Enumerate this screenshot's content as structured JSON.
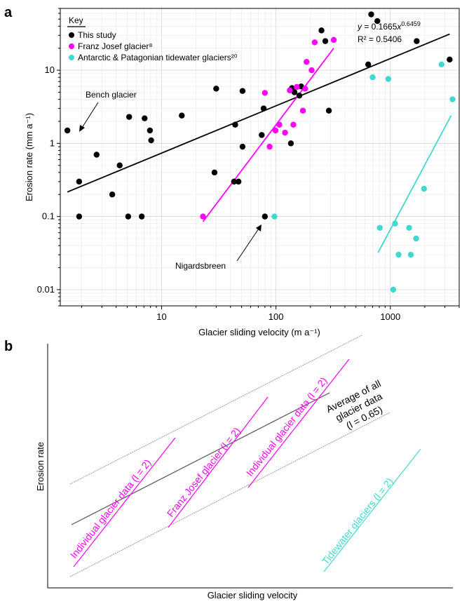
{
  "panel_a": {
    "label": "a",
    "xlabel": "Glacier sliding velocity (m a⁻¹)",
    "ylabel": "Erosion rate (mm a⁻¹)",
    "legend_title": "Key",
    "equation": "y = 0.1665x^0.6459",
    "r2": "R² = 0.5406",
    "annotations": [
      "Bench glacier",
      "Nigardsbreen"
    ]
  },
  "panel_b": {
    "label": "b",
    "xlabel": "Glacier sliding velocity",
    "ylabel": "Erosion rate",
    "labels": {
      "individual_1": "Individual glacier data (l = 2)",
      "franz": "Franz Josef glacier (l = 2)",
      "individual_2": "Individual glacier data (l = 2)",
      "avg_1": "Average of all",
      "avg_2": "glacier data",
      "avg_3": "(l = 0.65)",
      "tidewater": "Tidewater glaciers (l = 2)"
    }
  },
  "colors": {
    "this_study": "#000000",
    "franz": "#ff00ff",
    "tidewater": "#40d8d0",
    "grey": "#9a9a9a"
  },
  "chart_data": [
    {
      "type": "scatter",
      "xscale": "log",
      "yscale": "log",
      "xlim": [
        1.3,
        4000
      ],
      "ylim": [
        0.006,
        70
      ],
      "xticks": [
        10,
        100,
        1000
      ],
      "yticks": [
        0.01,
        0.1,
        1,
        10
      ],
      "xlabel": "Glacier sliding velocity (m a⁻¹)",
      "ylabel": "Erosion rate (mm a⁻¹)",
      "grid": true,
      "legend_position": "top-left",
      "series": [
        {
          "name": "This study",
          "color": "#000000",
          "points": [
            [
              1.5,
              1.5
            ],
            [
              1.9,
              0.3
            ],
            [
              1.9,
              0.1
            ],
            [
              2.7,
              0.7
            ],
            [
              3.7,
              0.2
            ],
            [
              4.3,
              0.5
            ],
            [
              5.1,
              0.1
            ],
            [
              5.2,
              2.3
            ],
            [
              6.7,
              0.1
            ],
            [
              7.1,
              2.2
            ],
            [
              7.9,
              1.5
            ],
            [
              8.1,
              1.1
            ],
            [
              15,
              2.4
            ],
            [
              29,
              0.4
            ],
            [
              30,
              5.6
            ],
            [
              43,
              0.3
            ],
            [
              44,
              1.8
            ],
            [
              47,
              0.3
            ],
            [
              51,
              0.9
            ],
            [
              51,
              5.2
            ],
            [
              75,
              1.3
            ],
            [
              78,
              3.0
            ],
            [
              80,
              0.1
            ],
            [
              135,
              1.0
            ],
            [
              138,
              5.7
            ],
            [
              145,
              5.0
            ],
            [
              160,
              4.5
            ],
            [
              166,
              6.0
            ],
            [
              250,
              35
            ],
            [
              270,
              25
            ],
            [
              290,
              2.8
            ],
            [
              640,
              12
            ],
            [
              680,
              58
            ],
            [
              770,
              47
            ],
            [
              1700,
              25
            ],
            [
              3300,
              14
            ]
          ],
          "fit": {
            "label": "y = 0.1665x^0.6459",
            "a": 0.1665,
            "b": 0.6459,
            "x_range": [
              1.5,
              3300
            ],
            "r2": "0.5406"
          }
        },
        {
          "name": "Franz Josef glacier⁸",
          "color": "#ff00ff",
          "points": [
            [
              23,
              0.1
            ],
            [
              80,
              4.9
            ],
            [
              88,
              0.9
            ],
            [
              99,
              1.5
            ],
            [
              107,
              1.8
            ],
            [
              120,
              1.4
            ],
            [
              132,
              5.3
            ],
            [
              142,
              1.8
            ],
            [
              152,
              5.9
            ],
            [
              172,
              2.8
            ],
            [
              180,
              5.6
            ],
            [
              185,
              13
            ],
            [
              205,
              10
            ],
            [
              218,
              24
            ],
            [
              320,
              26
            ]
          ],
          "fit": {
            "x_range": [
              23,
              320
            ],
            "y_range": [
              0.085,
              20
            ]
          }
        },
        {
          "name": "Antarctic & Patagonian tidewater glaciers²⁰",
          "color": "#40d8d0",
          "points": [
            [
              97,
              0.1
            ],
            [
              700,
              8.0
            ],
            [
              960,
              7.6
            ],
            [
              810,
              0.07
            ],
            [
              1060,
              0.01
            ],
            [
              1100,
              0.08
            ],
            [
              1180,
              0.03
            ],
            [
              1460,
              0.07
            ],
            [
              1510,
              0.03
            ],
            [
              1680,
              0.05
            ],
            [
              1970,
              0.24
            ],
            [
              2800,
              12
            ],
            [
              3500,
              4.0
            ]
          ],
          "fit": {
            "x_range": [
              780,
              3400
            ],
            "y_range": [
              0.032,
              2.4
            ]
          }
        }
      ]
    },
    {
      "type": "line",
      "xlabel": "Glacier sliding velocity",
      "ylabel": "Erosion rate",
      "series": [
        {
          "name": "Average of all glacier data (l = 0.65)",
          "slope": 0.65
        },
        {
          "name": "Individual glacier data (l = 2)",
          "slope": 2
        },
        {
          "name": "Franz Josef glacier (l = 2)",
          "slope": 2
        },
        {
          "name": "Individual glacier data (l = 2)",
          "slope": 2
        },
        {
          "name": "Tidewater glaciers (l = 2)",
          "slope": 2
        }
      ]
    }
  ]
}
